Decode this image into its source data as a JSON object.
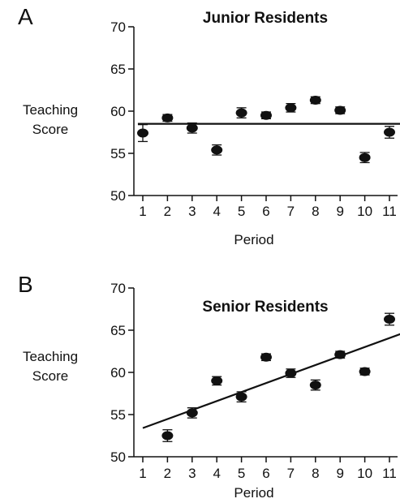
{
  "chart_data": [
    {
      "type": "scatter",
      "panel": "A",
      "title": "Junior Residents",
      "xlabel": "Period",
      "ylabel": [
        "Teaching",
        "Score"
      ],
      "ylim": [
        50,
        70
      ],
      "yticks": [
        50,
        55,
        60,
        65,
        70
      ],
      "x": [
        1,
        2,
        3,
        4,
        5,
        6,
        7,
        8,
        9,
        10,
        11
      ],
      "values": [
        57.4,
        59.2,
        58.0,
        55.4,
        59.8,
        59.5,
        60.4,
        61.3,
        60.1,
        54.5,
        57.5
      ],
      "errors": [
        1.0,
        0.4,
        0.6,
        0.6,
        0.6,
        0.4,
        0.5,
        0.4,
        0.4,
        0.6,
        0.7
      ],
      "fit_line": {
        "x": [
          0.8,
          11.5
        ],
        "y": [
          58.5,
          58.5
        ]
      },
      "grid": false
    },
    {
      "type": "scatter",
      "panel": "B",
      "title": "Senior Residents",
      "xlabel": "Period",
      "ylabel": [
        "Teaching",
        "Score"
      ],
      "ylim": [
        50,
        70
      ],
      "yticks": [
        50,
        55,
        60,
        65,
        70
      ],
      "x": [
        2,
        3,
        4,
        5,
        6,
        7,
        8,
        9,
        10,
        11
      ],
      "values": [
        52.5,
        55.2,
        59.0,
        57.1,
        61.8,
        59.9,
        58.5,
        62.1,
        60.1,
        66.3
      ],
      "errors": [
        0.7,
        0.6,
        0.5,
        0.6,
        0.4,
        0.5,
        0.6,
        0.4,
        0.4,
        0.7
      ],
      "fit_line": {
        "x": [
          1,
          11.5
        ],
        "y": [
          53.4,
          64.6
        ]
      },
      "grid": false
    }
  ]
}
